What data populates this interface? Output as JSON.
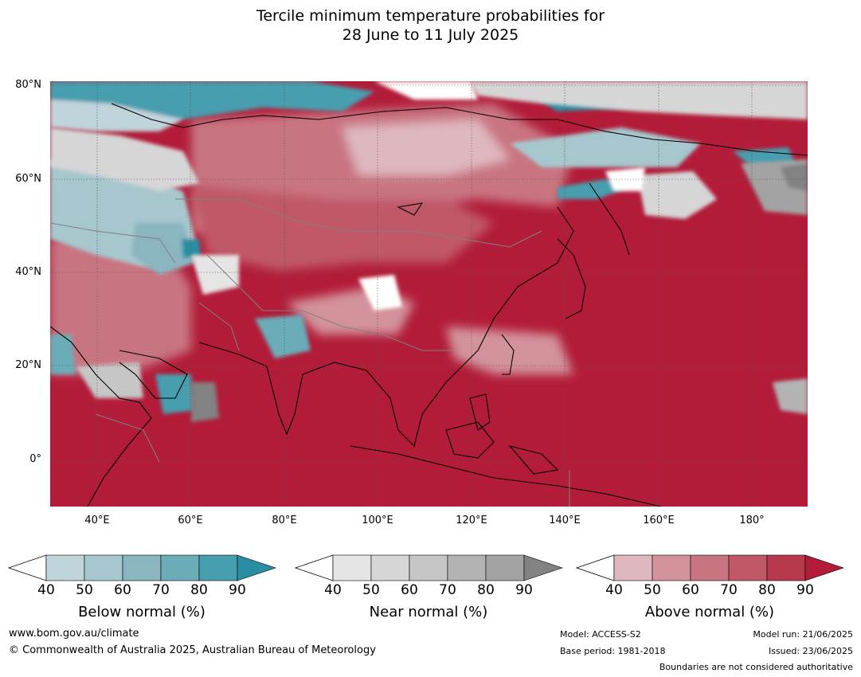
{
  "title": {
    "line1": "Tercile minimum temperature probabilities for",
    "line2": "28 June to 11 July 2025"
  },
  "map": {
    "lat_labels": [
      "80°N",
      "60°N",
      "40°N",
      "20°N",
      "0°"
    ],
    "lon_labels": [
      "40°E",
      "60°E",
      "80°E",
      "100°E",
      "120°E",
      "140°E",
      "160°E",
      "180°"
    ]
  },
  "colorbars": [
    {
      "title": "Below normal (%)",
      "ticks": [
        "40",
        "50",
        "60",
        "70",
        "80",
        "90"
      ],
      "colors": [
        "#c0d4db",
        "#a6c7cd",
        "#8ab5c1",
        "#6aacb8",
        "#469eaf",
        "#2a8ea3"
      ]
    },
    {
      "title": "Near normal (%)",
      "ticks": [
        "40",
        "50",
        "60",
        "70",
        "80",
        "90"
      ],
      "colors": [
        "#e5e5e5",
        "#d6d6d6",
        "#c6c6c6",
        "#b3b3b3",
        "#a3a3a3",
        "#828282"
      ]
    },
    {
      "title": "Above normal (%)",
      "ticks": [
        "40",
        "50",
        "60",
        "70",
        "80",
        "90"
      ],
      "colors": [
        "#dfb8bf",
        "#d3939b",
        "#c97581",
        "#c05868",
        "#b7394c",
        "#b21c39"
      ]
    }
  ],
  "footer": {
    "website": "www.bom.gov.au/climate",
    "copyright": "© Commonwealth of Australia 2025, Australian Bureau of Meteorology",
    "model": "Model: ACCESS-S2",
    "base_period": "Base period: 1981-2018",
    "model_run": "Model run: 21/06/2025",
    "issued": "Issued: 23/06/2025",
    "disclaimer": "Boundaries are not considered authoritative"
  }
}
